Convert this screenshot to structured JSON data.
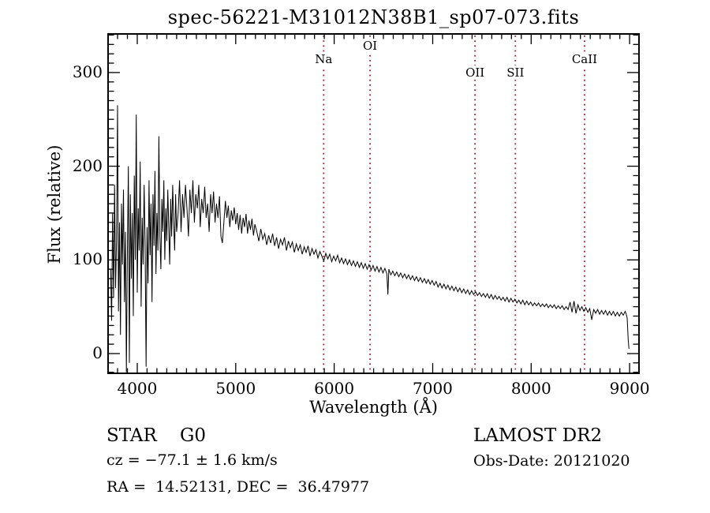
{
  "title": "spec-56221-M31012N38B1_sp07-073.fits",
  "annotations": {
    "class_label": "STAR    G0",
    "survey": "LAMOST DR2",
    "cz": "cz = −77.1 ± 1.6 km/s",
    "obs_date": "Obs-Date: 20121020",
    "radec": "RA =  14.52131, DEC =  36.47977"
  },
  "colors": {
    "background": "#ffffff",
    "spectrum_line": "#000000",
    "marker_line": "#9b2333",
    "text": "#000000"
  },
  "chart_data": {
    "type": "line",
    "title": "spec-56221-M31012N38B1_sp07-073.fits",
    "xlabel": "Wavelength (Å)",
    "ylabel": "Flux (relative)",
    "xlim": [
      3704,
      9095
    ],
    "ylim": [
      -21.1,
      341.2
    ],
    "x_major_ticks": [
      4000,
      5000,
      6000,
      7000,
      8000,
      9000
    ],
    "y_major_ticks": [
      0,
      100,
      200,
      300
    ],
    "x_minor_step": 100,
    "y_minor_step": 10,
    "grid": false,
    "legend": "none",
    "spectral_line_markers": [
      {
        "label": "Na",
        "wavelength": 5893,
        "label_row": 1
      },
      {
        "label": "OI",
        "wavelength": 6364,
        "label_row": 0
      },
      {
        "label": "OII",
        "wavelength": 7430,
        "label_row": 2
      },
      {
        "label": "SII",
        "wavelength": 7840,
        "label_row": 2
      },
      {
        "label": "CaII",
        "wavelength": 8542,
        "label_row": 1
      }
    ],
    "series": [
      {
        "name": "spectrum",
        "points": [
          [
            3730,
            90
          ],
          [
            3740,
            35
          ],
          [
            3750,
            150
          ],
          [
            3760,
            60
          ],
          [
            3770,
            180
          ],
          [
            3780,
            70
          ],
          [
            3790,
            120
          ],
          [
            3800,
            265
          ],
          [
            3810,
            45
          ],
          [
            3820,
            140
          ],
          [
            3830,
            20
          ],
          [
            3840,
            160
          ],
          [
            3850,
            95
          ],
          [
            3860,
            175
          ],
          [
            3870,
            55
          ],
          [
            3880,
            130
          ],
          [
            3890,
            -20
          ],
          [
            3900,
            110
          ],
          [
            3910,
            200
          ],
          [
            3920,
            -10
          ],
          [
            3930,
            170
          ],
          [
            3940,
            80
          ],
          [
            3950,
            150
          ],
          [
            3960,
            40
          ],
          [
            3970,
            190
          ],
          [
            3980,
            100
          ],
          [
            3990,
            255
          ],
          [
            4000,
            65
          ],
          [
            4010,
            155
          ],
          [
            4020,
            110
          ],
          [
            4030,
            205
          ],
          [
            4040,
            50
          ],
          [
            4050,
            145
          ],
          [
            4060,
            95
          ],
          [
            4070,
            180
          ],
          [
            4080,
            120
          ],
          [
            4090,
            -14
          ],
          [
            4100,
            135
          ],
          [
            4110,
            75
          ],
          [
            4120,
            185
          ],
          [
            4130,
            105
          ],
          [
            4140,
            160
          ],
          [
            4150,
            55
          ],
          [
            4160,
            170
          ],
          [
            4170,
            115
          ],
          [
            4180,
            195
          ],
          [
            4190,
            85
          ],
          [
            4200,
            150
          ],
          [
            4210,
            110
          ],
          [
            4220,
            232
          ],
          [
            4230,
            125
          ],
          [
            4240,
            90
          ],
          [
            4250,
            165
          ],
          [
            4260,
            130
          ],
          [
            4270,
            185
          ],
          [
            4280,
            100
          ],
          [
            4290,
            155
          ],
          [
            4300,
            120
          ],
          [
            4310,
            175
          ],
          [
            4320,
            135
          ],
          [
            4330,
            95
          ],
          [
            4340,
            165
          ],
          [
            4350,
            125
          ],
          [
            4360,
            180
          ],
          [
            4370,
            140
          ],
          [
            4380,
            110
          ],
          [
            4390,
            170
          ],
          [
            4400,
            130
          ],
          [
            4415,
            150
          ],
          [
            4430,
            185
          ],
          [
            4445,
            130
          ],
          [
            4460,
            170
          ],
          [
            4475,
            145
          ],
          [
            4490,
            180
          ],
          [
            4505,
            155
          ],
          [
            4520,
            125
          ],
          [
            4535,
            175
          ],
          [
            4550,
            150
          ],
          [
            4565,
            185
          ],
          [
            4580,
            140
          ],
          [
            4595,
            170
          ],
          [
            4610,
            155
          ],
          [
            4625,
            180
          ],
          [
            4640,
            135
          ],
          [
            4655,
            165
          ],
          [
            4670,
            150
          ],
          [
            4685,
            178
          ],
          [
            4700,
            145
          ],
          [
            4715,
            160
          ],
          [
            4730,
            130
          ],
          [
            4745,
            170
          ],
          [
            4760,
            150
          ],
          [
            4775,
            173
          ],
          [
            4790,
            140
          ],
          [
            4805,
            160
          ],
          [
            4820,
            145
          ],
          [
            4835,
            168
          ],
          [
            4850,
            125
          ],
          [
            4865,
            118
          ],
          [
            4880,
            140
          ],
          [
            4895,
            163
          ],
          [
            4910,
            145
          ],
          [
            4925,
            158
          ],
          [
            4940,
            135
          ],
          [
            4955,
            153
          ],
          [
            4970,
            142
          ],
          [
            4985,
            156
          ],
          [
            5000,
            138
          ],
          [
            5015,
            150
          ],
          [
            5030,
            132
          ],
          [
            5045,
            148
          ],
          [
            5060,
            128
          ],
          [
            5075,
            145
          ],
          [
            5090,
            135
          ],
          [
            5105,
            149
          ],
          [
            5120,
            128
          ],
          [
            5135,
            142
          ],
          [
            5150,
            132
          ],
          [
            5165,
            144
          ],
          [
            5180,
            126
          ],
          [
            5195,
            138
          ],
          [
            5215,
            130
          ],
          [
            5235,
            120
          ],
          [
            5255,
            133
          ],
          [
            5275,
            122
          ],
          [
            5295,
            128
          ],
          [
            5315,
            116
          ],
          [
            5335,
            126
          ],
          [
            5355,
            118
          ],
          [
            5375,
            128
          ],
          [
            5395,
            115
          ],
          [
            5415,
            124
          ],
          [
            5435,
            112
          ],
          [
            5455,
            122
          ],
          [
            5475,
            116
          ],
          [
            5495,
            124
          ],
          [
            5515,
            110
          ],
          [
            5535,
            120
          ],
          [
            5555,
            113
          ],
          [
            5575,
            119
          ],
          [
            5595,
            108
          ],
          [
            5615,
            117
          ],
          [
            5635,
            110
          ],
          [
            5655,
            116
          ],
          [
            5675,
            106
          ],
          [
            5695,
            114
          ],
          [
            5715,
            108
          ],
          [
            5735,
            115
          ],
          [
            5755,
            104
          ],
          [
            5775,
            112
          ],
          [
            5795,
            106
          ],
          [
            5815,
            111
          ],
          [
            5835,
            102
          ],
          [
            5855,
            109
          ],
          [
            5875,
            104
          ],
          [
            5895,
            99
          ],
          [
            5915,
            107
          ],
          [
            5935,
            101
          ],
          [
            5955,
            106
          ],
          [
            5975,
            98
          ],
          [
            5995,
            104
          ],
          [
            6015,
            99
          ],
          [
            6035,
            105
          ],
          [
            6055,
            97
          ],
          [
            6075,
            102
          ],
          [
            6095,
            96
          ],
          [
            6115,
            101
          ],
          [
            6135,
            95
          ],
          [
            6155,
            100
          ],
          [
            6175,
            94
          ],
          [
            6195,
            99
          ],
          [
            6215,
            93
          ],
          [
            6235,
            98
          ],
          [
            6255,
            92
          ],
          [
            6275,
            97
          ],
          [
            6295,
            91
          ],
          [
            6315,
            96
          ],
          [
            6335,
            90
          ],
          [
            6355,
            95
          ],
          [
            6375,
            89
          ],
          [
            6395,
            94
          ],
          [
            6415,
            88
          ],
          [
            6435,
            93
          ],
          [
            6455,
            87
          ],
          [
            6475,
            92
          ],
          [
            6495,
            86
          ],
          [
            6515,
            91
          ],
          [
            6535,
            85
          ],
          [
            6545,
            63
          ],
          [
            6555,
            90
          ],
          [
            6575,
            84
          ],
          [
            6595,
            88
          ],
          [
            6615,
            83
          ],
          [
            6635,
            87
          ],
          [
            6655,
            82
          ],
          [
            6675,
            86
          ],
          [
            6695,
            81
          ],
          [
            6715,
            85
          ],
          [
            6735,
            80
          ],
          [
            6755,
            84
          ],
          [
            6775,
            79
          ],
          [
            6795,
            83
          ],
          [
            6815,
            78
          ],
          [
            6835,
            82
          ],
          [
            6855,
            77
          ],
          [
            6875,
            81
          ],
          [
            6895,
            76
          ],
          [
            6915,
            80
          ],
          [
            6935,
            75
          ],
          [
            6955,
            79
          ],
          [
            6975,
            74
          ],
          [
            6995,
            78
          ],
          [
            7015,
            73
          ],
          [
            7035,
            77
          ],
          [
            7055,
            71
          ],
          [
            7075,
            75
          ],
          [
            7095,
            70
          ],
          [
            7115,
            74
          ],
          [
            7135,
            69
          ],
          [
            7155,
            73
          ],
          [
            7175,
            68
          ],
          [
            7195,
            72
          ],
          [
            7215,
            67
          ],
          [
            7235,
            71
          ],
          [
            7255,
            66
          ],
          [
            7275,
            70
          ],
          [
            7295,
            65
          ],
          [
            7315,
            69
          ],
          [
            7335,
            64
          ],
          [
            7355,
            68
          ],
          [
            7375,
            63
          ],
          [
            7395,
            67
          ],
          [
            7415,
            63
          ],
          [
            7435,
            66
          ],
          [
            7455,
            62
          ],
          [
            7475,
            65
          ],
          [
            7495,
            61
          ],
          [
            7515,
            64
          ],
          [
            7535,
            60
          ],
          [
            7555,
            64
          ],
          [
            7575,
            59
          ],
          [
            7595,
            63
          ],
          [
            7615,
            58
          ],
          [
            7635,
            62
          ],
          [
            7655,
            58
          ],
          [
            7675,
            61
          ],
          [
            7695,
            57
          ],
          [
            7715,
            60
          ],
          [
            7735,
            56
          ],
          [
            7755,
            60
          ],
          [
            7775,
            55
          ],
          [
            7795,
            59
          ],
          [
            7815,
            55
          ],
          [
            7835,
            58
          ],
          [
            7855,
            54
          ],
          [
            7875,
            57
          ],
          [
            7895,
            53
          ],
          [
            7915,
            57
          ],
          [
            7935,
            52
          ],
          [
            7955,
            56
          ],
          [
            7975,
            52
          ],
          [
            7995,
            55
          ],
          [
            8015,
            51
          ],
          [
            8035,
            54
          ],
          [
            8055,
            51
          ],
          [
            8075,
            54
          ],
          [
            8095,
            50
          ],
          [
            8115,
            53
          ],
          [
            8135,
            50
          ],
          [
            8155,
            53
          ],
          [
            8175,
            49
          ],
          [
            8195,
            52
          ],
          [
            8215,
            49
          ],
          [
            8235,
            52
          ],
          [
            8255,
            48
          ],
          [
            8275,
            51
          ],
          [
            8295,
            48
          ],
          [
            8315,
            51
          ],
          [
            8335,
            47
          ],
          [
            8355,
            50
          ],
          [
            8375,
            47
          ],
          [
            8395,
            55
          ],
          [
            8415,
            44
          ],
          [
            8435,
            56
          ],
          [
            8455,
            43
          ],
          [
            8475,
            52
          ],
          [
            8495,
            46
          ],
          [
            8515,
            50
          ],
          [
            8535,
            45
          ],
          [
            8555,
            49
          ],
          [
            8575,
            44
          ],
          [
            8595,
            48
          ],
          [
            8615,
            36
          ],
          [
            8635,
            47
          ],
          [
            8655,
            43
          ],
          [
            8675,
            47
          ],
          [
            8695,
            42
          ],
          [
            8715,
            46
          ],
          [
            8735,
            42
          ],
          [
            8755,
            46
          ],
          [
            8775,
            41
          ],
          [
            8795,
            45
          ],
          [
            8815,
            41
          ],
          [
            8835,
            45
          ],
          [
            8855,
            40
          ],
          [
            8875,
            44
          ],
          [
            8895,
            40
          ],
          [
            8915,
            44
          ],
          [
            8935,
            41
          ],
          [
            8955,
            45
          ],
          [
            8965,
            42
          ],
          [
            8975,
            38
          ],
          [
            8985,
            15
          ],
          [
            8993,
            5
          ]
        ]
      }
    ]
  }
}
